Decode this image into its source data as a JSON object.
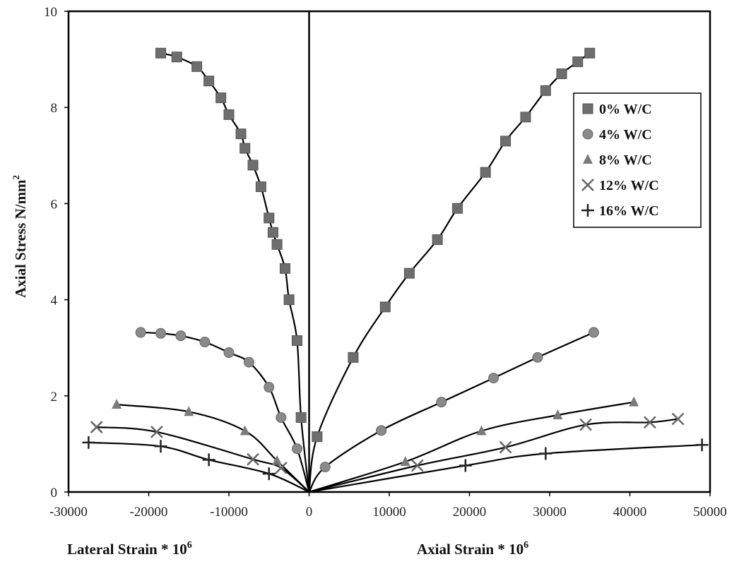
{
  "chart_data": {
    "type": "scatter",
    "xlim": [
      -30000,
      50000
    ],
    "ylim": [
      0,
      10
    ],
    "xticks": [
      -30000,
      -20000,
      -10000,
      0,
      10000,
      20000,
      30000,
      40000,
      50000
    ],
    "yticks": [
      0,
      2,
      4,
      6,
      8,
      10
    ],
    "xtick_labels": [
      "-30000",
      "-20000",
      "-10000",
      "0",
      "10000",
      "20000",
      "30000",
      "40000",
      "50000"
    ],
    "ytick_labels": [
      "0",
      "2",
      "4",
      "6",
      "8",
      "10"
    ],
    "ylabel": "Axial Stress N/mm",
    "ylabel_sup": "2",
    "xlabel_left": "Lateral Strain * 10",
    "xlabel_left_sup": "6",
    "xlabel_right": "Axial Strain * 10",
    "xlabel_right_sup": "6",
    "grid": false,
    "legend_position": "top-right",
    "series": [
      {
        "name": "0% W/C",
        "marker": "square",
        "color": "#6e6e6e",
        "lateral": [
          [
            -18500,
            9.13
          ],
          [
            -16500,
            9.05
          ],
          [
            -14000,
            8.85
          ],
          [
            -12500,
            8.55
          ],
          [
            -11000,
            8.2
          ],
          [
            -10000,
            7.85
          ],
          [
            -8500,
            7.45
          ],
          [
            -8000,
            7.15
          ],
          [
            -7000,
            6.8
          ],
          [
            -6000,
            6.35
          ],
          [
            -5000,
            5.7
          ],
          [
            -4500,
            5.4
          ],
          [
            -4000,
            5.15
          ],
          [
            -3000,
            4.65
          ],
          [
            -2500,
            4.0
          ],
          [
            -1500,
            3.15
          ],
          [
            -1000,
            1.55
          ],
          [
            0,
            0
          ]
        ],
        "axial": [
          [
            0,
            0
          ],
          [
            1000,
            1.15
          ],
          [
            5500,
            2.8
          ],
          [
            9500,
            3.85
          ],
          [
            12500,
            4.55
          ],
          [
            16000,
            5.25
          ],
          [
            18500,
            5.9
          ],
          [
            22000,
            6.65
          ],
          [
            24500,
            7.3
          ],
          [
            27000,
            7.8
          ],
          [
            29500,
            8.35
          ],
          [
            31500,
            8.7
          ],
          [
            33500,
            8.95
          ],
          [
            35000,
            9.13
          ]
        ]
      },
      {
        "name": "4% W/C",
        "marker": "circle",
        "color": "#8a8a8a",
        "lateral": [
          [
            -21000,
            3.32
          ],
          [
            -18500,
            3.3
          ],
          [
            -16000,
            3.25
          ],
          [
            -13000,
            3.12
          ],
          [
            -10000,
            2.9
          ],
          [
            -7500,
            2.7
          ],
          [
            -5000,
            2.18
          ],
          [
            -3500,
            1.55
          ],
          [
            -1500,
            0.9
          ],
          [
            0,
            0
          ]
        ],
        "axial": [
          [
            0,
            0
          ],
          [
            2000,
            0.52
          ],
          [
            9000,
            1.28
          ],
          [
            16500,
            1.87
          ],
          [
            23000,
            2.37
          ],
          [
            28500,
            2.8
          ],
          [
            35500,
            3.32
          ]
        ]
      },
      {
        "name": "8% W/C",
        "marker": "triangle",
        "color": "#7a7a7a",
        "lateral": [
          [
            -24000,
            1.82
          ],
          [
            -15000,
            1.67
          ],
          [
            -8000,
            1.27
          ],
          [
            -4000,
            0.65
          ],
          [
            0,
            0
          ]
        ],
        "axial": [
          [
            0,
            0
          ],
          [
            12000,
            0.63
          ],
          [
            21500,
            1.27
          ],
          [
            31000,
            1.6
          ],
          [
            40500,
            1.87
          ]
        ]
      },
      {
        "name": "12% W/C",
        "marker": "x",
        "color": "#666666",
        "lateral": [
          [
            -26500,
            1.35
          ],
          [
            -19000,
            1.25
          ],
          [
            -7000,
            0.68
          ],
          [
            -3500,
            0.5
          ],
          [
            0,
            0
          ]
        ],
        "axial": [
          [
            0,
            0
          ],
          [
            13500,
            0.55
          ],
          [
            24500,
            0.93
          ],
          [
            34500,
            1.4
          ],
          [
            42500,
            1.45
          ],
          [
            46000,
            1.52
          ]
        ]
      },
      {
        "name": "16% W/C",
        "marker": "plus",
        "color": "#222222",
        "lateral": [
          [
            -27500,
            1.03
          ],
          [
            -18500,
            0.95
          ],
          [
            -12500,
            0.67
          ],
          [
            -5000,
            0.38
          ],
          [
            0,
            0
          ]
        ],
        "axial": [
          [
            0,
            0
          ],
          [
            19500,
            0.55
          ],
          [
            29500,
            0.8
          ],
          [
            49000,
            0.98
          ]
        ]
      }
    ]
  }
}
